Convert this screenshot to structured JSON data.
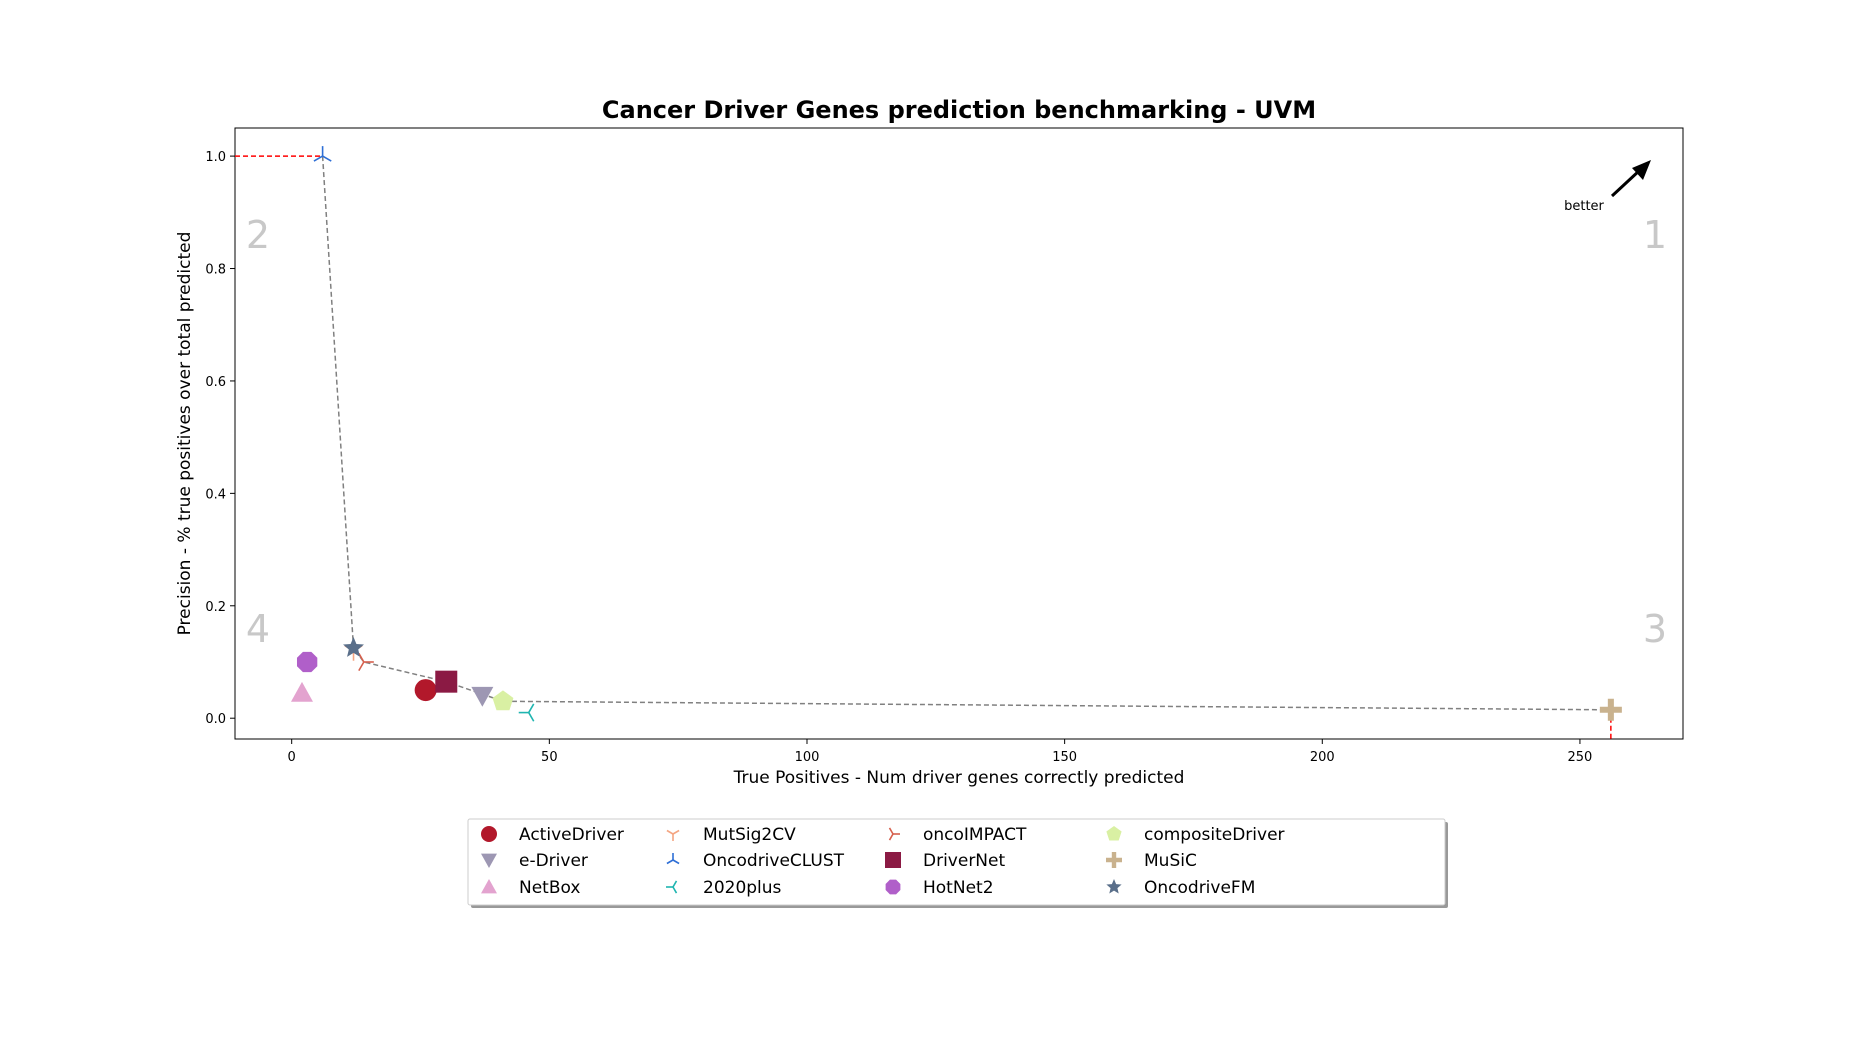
{
  "chart_data": {
    "type": "scatter",
    "title": "Cancer Driver Genes prediction benchmarking - UVM",
    "xlabel": "True Positives - Num driver genes correctly predicted",
    "ylabel": "Precision - % true positives over total predicted",
    "xlim": [
      -11,
      270
    ],
    "ylim": [
      -0.037,
      1.05
    ],
    "xticks": [
      0,
      50,
      100,
      150,
      200,
      250
    ],
    "xtick_labels": [
      "0",
      "50",
      "100",
      "150",
      "200",
      "250"
    ],
    "yticks": [
      0.0,
      0.2,
      0.4,
      0.6,
      0.8,
      1.0
    ],
    "ytick_labels": [
      "0.0",
      "0.2",
      "0.4",
      "0.6",
      "0.8",
      "1.0"
    ],
    "grid": false,
    "legend_position": "bottom-center",
    "quadrant_labels": [
      "1",
      "2",
      "3",
      "4"
    ],
    "annotation": "better",
    "series": [
      {
        "name": "ActiveDriver",
        "x": 26,
        "y": 0.05,
        "color": "#b2182b",
        "marker": "circle"
      },
      {
        "name": "MutSig2CV",
        "x": 12,
        "y": 0.12,
        "color": "#f4a582",
        "marker": "tri_down"
      },
      {
        "name": "oncoIMPACT",
        "x": 14,
        "y": 0.1,
        "color": "#d6604d",
        "marker": "tri_right"
      },
      {
        "name": "HotNet2",
        "x": 3,
        "y": 0.1,
        "color": "#b05fc9",
        "marker": "octagon"
      },
      {
        "name": "MuSiC",
        "x": 256,
        "y": 0.015,
        "color": "#c9b28e",
        "marker": "plus"
      },
      {
        "name": "e-Driver",
        "x": 37,
        "y": 0.04,
        "color": "#9d97b3",
        "marker": "triangle_down"
      },
      {
        "name": "OncodriveCLUST",
        "x": 6,
        "y": 1.0,
        "color": "#2e6fd6",
        "marker": "tri_up"
      },
      {
        "name": "DriverNet",
        "x": 30,
        "y": 0.065,
        "color": "#8b1a44",
        "marker": "square"
      },
      {
        "name": "compositeDriver",
        "x": 41,
        "y": 0.03,
        "color": "#d9f0a3",
        "marker": "pentagon"
      },
      {
        "name": "OncodriveFM",
        "x": 12,
        "y": 0.125,
        "color": "#5a6f8a",
        "marker": "star"
      },
      {
        "name": "NetBox",
        "x": 2,
        "y": 0.045,
        "color": "#e3a3cf",
        "marker": "triangle_up"
      },
      {
        "name": "2020plus",
        "x": 46,
        "y": 0.01,
        "color": "#1fb5b0",
        "marker": "tri_left"
      }
    ],
    "pareto_frontier": [
      [
        6,
        1.0
      ],
      [
        12,
        0.125
      ],
      [
        14,
        0.1
      ],
      [
        30,
        0.065
      ],
      [
        41,
        0.03
      ],
      [
        256,
        0.015
      ]
    ]
  },
  "colors": {
    "frontier": "#808080",
    "guide": "#ff0000",
    "quadrant_text": "#c8c8c8"
  },
  "legend_order": [
    "ActiveDriver",
    "e-Driver",
    "NetBox",
    "MutSig2CV",
    "OncodriveCLUST",
    "2020plus",
    "oncoIMPACT",
    "DriverNet",
    "HotNet2",
    "compositeDriver",
    "MuSiC",
    "OncodriveFM"
  ]
}
